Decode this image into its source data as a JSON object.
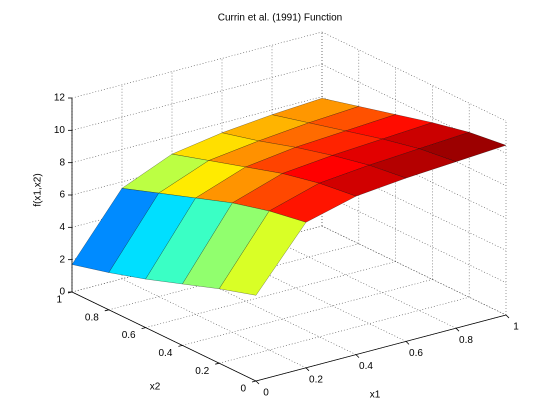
{
  "chart_data": {
    "type": "surface",
    "title": "Currin et al. (1991) Function",
    "xlabel": "x1",
    "ylabel": "x2",
    "zlabel": "f(x1,x2)",
    "x": [
      0,
      0.2,
      0.4,
      0.6,
      0.8,
      1
    ],
    "y": [
      0,
      0.2,
      0.4,
      0.6,
      0.8,
      1
    ],
    "z": [
      [
        5.3,
        9.0,
        9.8,
        10.1,
        10.3,
        10.5
      ],
      [
        4.6,
        8.6,
        9.5,
        9.8,
        10.0,
        10.2
      ],
      [
        3.8,
        8.0,
        9.0,
        9.3,
        9.5,
        9.7
      ],
      [
        3.0,
        7.2,
        8.3,
        8.7,
        8.9,
        9.1
      ],
      [
        2.3,
        6.4,
        7.6,
        8.0,
        8.3,
        8.5
      ],
      [
        1.7,
        5.6,
        6.9,
        7.4,
        7.7,
        7.9
      ]
    ],
    "xlim": [
      0,
      1
    ],
    "ylim": [
      0,
      1
    ],
    "zlim": [
      0,
      12
    ],
    "xticks": [
      0,
      0.2,
      0.4,
      0.6,
      0.8,
      1
    ],
    "yticks": [
      0,
      0.2,
      0.4,
      0.6,
      0.8,
      1
    ],
    "zticks": [
      0,
      2,
      4,
      6,
      8,
      10,
      12
    ],
    "colormap": "jet",
    "grid": true
  }
}
